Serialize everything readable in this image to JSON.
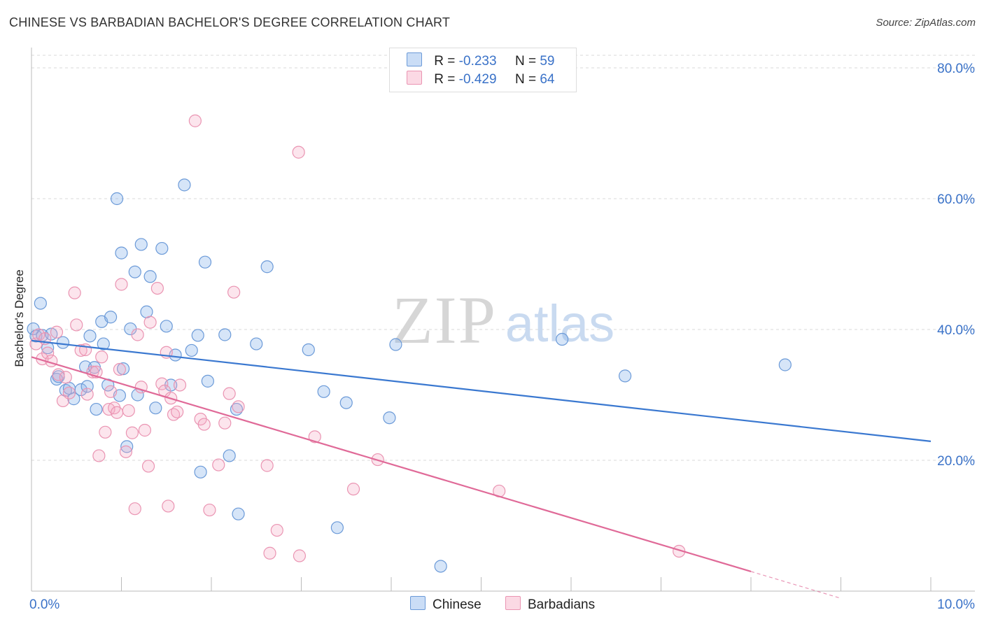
{
  "title": "CHINESE VS BARBADIAN BACHELOR'S DEGREE CORRELATION CHART",
  "source": "Source: ZipAtlas.com",
  "watermark": {
    "zip": "ZIP",
    "atlas": "atlas"
  },
  "legend": {
    "rows": [
      {
        "r_label": "R =",
        "r_value": "-0.233",
        "n_label": "N =",
        "n_value": "59"
      },
      {
        "r_label": "R =",
        "r_value": "-0.429",
        "n_label": "N =",
        "n_value": "64"
      }
    ]
  },
  "colors": {
    "chinese_fill": "rgba(138,180,236,0.35)",
    "chinese_stroke": "#6b9ad8",
    "chinese_line": "#3a78d0",
    "barbadian_fill": "rgba(246,170,196,0.30)",
    "barbadian_stroke": "#ea94b2",
    "barbadian_line": "#e06a98",
    "axis_text": "#3a72c8",
    "grid": "#d8d8d8"
  },
  "chart_data": {
    "type": "scatter",
    "title": "CHINESE VS BARBADIAN BACHELOR'S DEGREE CORRELATION CHART",
    "xlabel": "",
    "ylabel": "Bachelor's Degree",
    "xlim": [
      0,
      10
    ],
    "ylim": [
      0,
      80
    ],
    "x_ticks": [
      0,
      1,
      2,
      3,
      4,
      5,
      6,
      7,
      8,
      9,
      10
    ],
    "x_tick_labels": [
      {
        "value": 0,
        "label": "0.0%"
      },
      {
        "value": 10,
        "label": "10.0%"
      }
    ],
    "y_tick_labels": [
      {
        "value": 80,
        "label": "80.0%"
      },
      {
        "value": 60,
        "label": "60.0%"
      },
      {
        "value": 40,
        "label": "40.0%"
      },
      {
        "value": 20,
        "label": "20.0%"
      }
    ],
    "y_gridlines": [
      20,
      40,
      60,
      80
    ],
    "series": [
      {
        "name": "Chinese",
        "r": -0.233,
        "n": 59,
        "trend": {
          "x0": 0.0,
          "y0": 38.3,
          "x1": 10.0,
          "y1": 22.9
        },
        "points": [
          [
            0.02,
            40.1
          ],
          [
            0.05,
            39.0
          ],
          [
            0.1,
            44.0
          ],
          [
            0.12,
            39.1
          ],
          [
            0.18,
            37.2
          ],
          [
            0.22,
            39.3
          ],
          [
            0.28,
            32.4
          ],
          [
            0.3,
            32.8
          ],
          [
            0.35,
            38.0
          ],
          [
            0.38,
            30.7
          ],
          [
            0.42,
            31.0
          ],
          [
            0.47,
            29.4
          ],
          [
            0.55,
            30.8
          ],
          [
            0.6,
            34.3
          ],
          [
            0.62,
            31.3
          ],
          [
            0.65,
            39.0
          ],
          [
            0.7,
            34.2
          ],
          [
            0.72,
            27.8
          ],
          [
            0.78,
            41.2
          ],
          [
            0.8,
            37.8
          ],
          [
            0.85,
            31.5
          ],
          [
            0.88,
            41.9
          ],
          [
            0.95,
            60.0
          ],
          [
            0.98,
            29.9
          ],
          [
            1.0,
            51.7
          ],
          [
            1.02,
            34.0
          ],
          [
            1.06,
            22.1
          ],
          [
            1.1,
            40.1
          ],
          [
            1.15,
            48.8
          ],
          [
            1.18,
            30.0
          ],
          [
            1.22,
            53.0
          ],
          [
            1.28,
            42.7
          ],
          [
            1.32,
            48.1
          ],
          [
            1.38,
            28.0
          ],
          [
            1.45,
            52.4
          ],
          [
            1.5,
            40.5
          ],
          [
            1.55,
            31.5
          ],
          [
            1.6,
            36.1
          ],
          [
            1.7,
            62.1
          ],
          [
            1.78,
            36.8
          ],
          [
            1.85,
            39.1
          ],
          [
            1.88,
            18.2
          ],
          [
            1.93,
            50.3
          ],
          [
            1.96,
            32.1
          ],
          [
            2.15,
            39.2
          ],
          [
            2.2,
            20.7
          ],
          [
            2.28,
            27.8
          ],
          [
            2.3,
            11.8
          ],
          [
            2.5,
            37.8
          ],
          [
            2.62,
            49.6
          ],
          [
            3.08,
            36.9
          ],
          [
            3.25,
            30.5
          ],
          [
            3.4,
            9.7
          ],
          [
            3.5,
            28.8
          ],
          [
            3.98,
            26.5
          ],
          [
            4.05,
            37.7
          ],
          [
            4.55,
            3.8
          ],
          [
            5.9,
            38.5
          ],
          [
            6.6,
            32.9
          ],
          [
            8.38,
            34.6
          ]
        ]
      },
      {
        "name": "Barbadians",
        "r": -0.429,
        "n": 64,
        "trend": {
          "x0": 0.0,
          "y0": 35.8,
          "x1": 8.0,
          "y1": 3.0
        },
        "trend_dashed": {
          "x0": 8.0,
          "y0": 3.0,
          "x1": 9.0,
          "y1": -1.1
        },
        "points": [
          [
            0.05,
            37.8
          ],
          [
            0.08,
            39.2
          ],
          [
            0.12,
            35.5
          ],
          [
            0.15,
            38.6
          ],
          [
            0.18,
            36.4
          ],
          [
            0.22,
            35.2
          ],
          [
            0.28,
            39.6
          ],
          [
            0.3,
            33.1
          ],
          [
            0.35,
            29.1
          ],
          [
            0.38,
            32.7
          ],
          [
            0.42,
            30.3
          ],
          [
            0.48,
            45.6
          ],
          [
            0.5,
            40.7
          ],
          [
            0.55,
            36.8
          ],
          [
            0.6,
            36.9
          ],
          [
            0.62,
            30.1
          ],
          [
            0.68,
            33.5
          ],
          [
            0.72,
            33.5
          ],
          [
            0.75,
            20.7
          ],
          [
            0.78,
            35.8
          ],
          [
            0.82,
            24.3
          ],
          [
            0.86,
            27.8
          ],
          [
            0.88,
            30.5
          ],
          [
            0.92,
            28.0
          ],
          [
            0.95,
            27.3
          ],
          [
            0.98,
            33.9
          ],
          [
            1.0,
            46.9
          ],
          [
            1.05,
            21.3
          ],
          [
            1.08,
            27.6
          ],
          [
            1.12,
            24.2
          ],
          [
            1.15,
            12.6
          ],
          [
            1.18,
            39.2
          ],
          [
            1.22,
            31.2
          ],
          [
            1.26,
            24.6
          ],
          [
            1.3,
            19.1
          ],
          [
            1.32,
            41.1
          ],
          [
            1.4,
            46.3
          ],
          [
            1.45,
            31.7
          ],
          [
            1.48,
            30.6
          ],
          [
            1.5,
            36.5
          ],
          [
            1.52,
            13.0
          ],
          [
            1.55,
            29.5
          ],
          [
            1.58,
            27.0
          ],
          [
            1.62,
            27.4
          ],
          [
            1.65,
            31.5
          ],
          [
            1.82,
            71.9
          ],
          [
            1.88,
            26.3
          ],
          [
            1.92,
            25.5
          ],
          [
            1.98,
            12.4
          ],
          [
            2.08,
            19.3
          ],
          [
            2.15,
            25.7
          ],
          [
            2.2,
            30.2
          ],
          [
            2.25,
            45.7
          ],
          [
            2.3,
            28.2
          ],
          [
            2.62,
            19.2
          ],
          [
            2.73,
            9.3
          ],
          [
            2.65,
            5.8
          ],
          [
            2.97,
            67.1
          ],
          [
            2.98,
            5.4
          ],
          [
            3.15,
            23.6
          ],
          [
            3.58,
            15.6
          ],
          [
            3.85,
            20.1
          ],
          [
            5.2,
            15.3
          ],
          [
            7.2,
            6.1
          ]
        ]
      }
    ],
    "legend": [
      "Chinese",
      "Barbadians"
    ]
  }
}
